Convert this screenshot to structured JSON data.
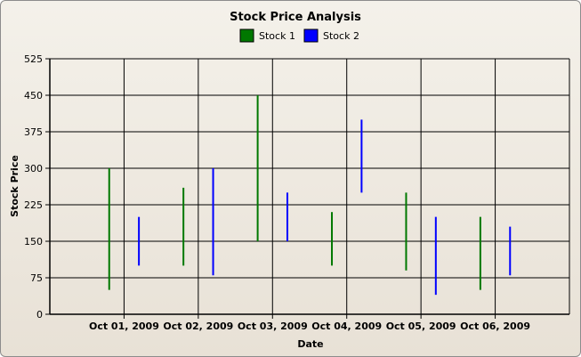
{
  "chart_data": {
    "type": "bar",
    "subtype": "high-low",
    "title": "Stock Price Analysis",
    "xlabel": "Date",
    "ylabel": "Stock Price",
    "ylim": [
      0,
      525
    ],
    "yticks": [
      0,
      75,
      150,
      225,
      300,
      375,
      450,
      525
    ],
    "categories": [
      "Oct 01, 2009",
      "Oct 02, 2009",
      "Oct 03, 2009",
      "Oct 04, 2009",
      "Oct 05, 2009",
      "Oct 06, 2009"
    ],
    "grid": true,
    "legend_position": "top",
    "series": [
      {
        "name": "Stock 1",
        "color": "#007800",
        "low": [
          50,
          100,
          150,
          100,
          90,
          50
        ],
        "high": [
          300,
          260,
          450,
          210,
          250,
          200
        ]
      },
      {
        "name": "Stock 2",
        "color": "#0000ff",
        "low": [
          100,
          80,
          150,
          250,
          40,
          80
        ],
        "high": [
          200,
          300,
          250,
          400,
          200,
          180
        ]
      }
    ]
  }
}
